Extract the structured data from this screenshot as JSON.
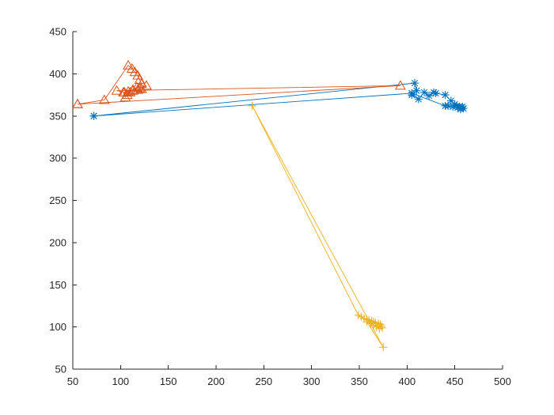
{
  "chart_data": {
    "type": "line",
    "title": "",
    "xlabel": "",
    "ylabel": "",
    "xlim": [
      50,
      500
    ],
    "ylim": [
      50,
      450
    ],
    "grid": false,
    "legend": "none",
    "xticks": [
      50,
      100,
      150,
      200,
      250,
      300,
      350,
      400,
      450,
      500
    ],
    "yticks": [
      50,
      100,
      150,
      200,
      250,
      300,
      350,
      400,
      450
    ],
    "series": [
      {
        "color": "#0072BD",
        "marker": "asterisk",
        "x": [
          72,
          408,
          410,
          405,
          412,
          418,
          423,
          428,
          430,
          440,
          446,
          450,
          452,
          455,
          457,
          458,
          459,
          456,
          453,
          448,
          443,
          440,
          405,
          72
        ],
        "y": [
          350,
          389,
          380,
          375,
          370,
          378,
          374,
          378,
          377,
          375,
          368,
          364,
          362,
          361,
          360,
          361,
          359,
          358,
          360,
          361,
          362,
          362,
          377,
          350
        ]
      },
      {
        "color": "#D95319",
        "marker": "triangle",
        "x": [
          55,
          83,
          108,
          112,
          115,
          118,
          120,
          122,
          117,
          113,
          110,
          107,
          105,
          103,
          108,
          113,
          118,
          122,
          127,
          120,
          113,
          104,
          96,
          393,
          55
        ],
        "y": [
          364,
          369,
          410,
          406,
          402,
          398,
          393,
          388,
          384,
          381,
          378,
          375,
          372,
          378,
          379,
          380,
          381,
          382,
          386,
          383,
          381,
          378,
          380,
          386,
          364
        ]
      },
      {
        "color": "#EDB120",
        "marker": "plus",
        "x": [
          238,
          349,
          352,
          355,
          358,
          360,
          363,
          365,
          367,
          370,
          372,
          373,
          374,
          371,
          368,
          365,
          362,
          358,
          375,
          238
        ],
        "y": [
          362,
          114,
          112,
          110,
          109,
          108,
          107,
          106,
          105,
          104,
          103,
          101,
          99,
          98,
          100,
          102,
          104,
          106,
          76,
          362
        ]
      }
    ]
  }
}
